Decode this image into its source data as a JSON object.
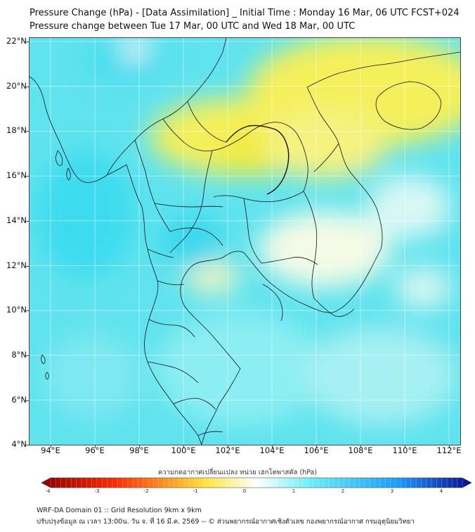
{
  "title_line1": "Pressure Change (hPa) - [Data Assimilation] _ Initial Time : Monday 16 Mar, 06 UTC FCST+024",
  "title_line2": "Pressure change between Tue 17 Mar, 00 UTC and Wed 18 Mar, 00 UTC",
  "lat_labels": [
    "22°N",
    "20°N",
    "18°N",
    "16°N",
    "14°N",
    "12°N",
    "10°N",
    "8°N",
    "6°N",
    "4°N"
  ],
  "lon_labels": [
    "94°E",
    "96°E",
    "98°E",
    "100°E",
    "102°E",
    "104°E",
    "106°E",
    "108°E",
    "110°E",
    "112°E"
  ],
  "colorbar": {
    "caption": "ความกดอากาศเปลี่ยนแปลง หน่วย เฮกโตพาสคัล (hPa)",
    "ticks": [
      "-4",
      "-3",
      "-2",
      "-1",
      "0",
      "1",
      "2",
      "3",
      "4"
    ],
    "colors": {
      "neg_strong": "#8b0000",
      "neg_mid": "#ff2a00",
      "neg_weak": "#ffe33a",
      "zero": "#ffffff",
      "pos_weak": "#6ff0f5",
      "pos_mid": "#1a9bff",
      "pos_strong": "#0a0a8c"
    }
  },
  "field_colors": {
    "background": "#5fe3ee",
    "yellow_high": "#f4f05a",
    "yellow_pale": "#f8f7b0",
    "white_patch": "#eefcfc",
    "cyan_deep": "#3fdcef"
  },
  "footer_line1": "WRF-DA Domain 01 :: Grid Resolution 9km x 9km",
  "footer_line2": "ปรับปรุงข้อมูล ณ เวลา 13:00น. วัน จ. ที่ 16 มี.ค. 2569 -- © ส่วนพยากรณ์อากาศเชิงตัวเลข กองพยากรณ์อากาศ กรมอุตุนิยมวิทยา"
}
